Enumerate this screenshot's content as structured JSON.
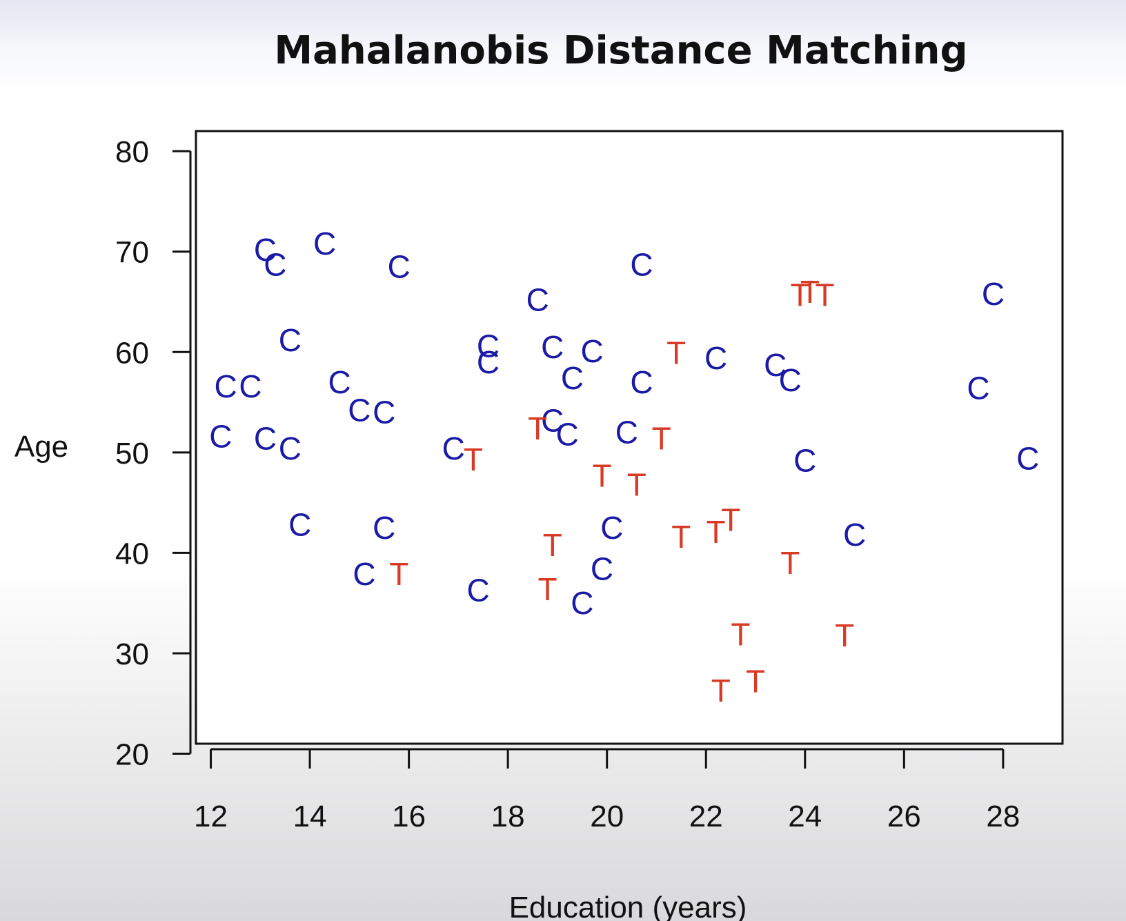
{
  "chart_data": {
    "type": "scatter",
    "title": "Mahalanobis Distance Matching",
    "xlabel": "Education (years)",
    "ylabel": "Age",
    "xlim": [
      11.7,
      29.2
    ],
    "ylim": [
      21,
      82
    ],
    "x_ticks": [
      "12",
      "14",
      "16",
      "18",
      "20",
      "22",
      "24",
      "26",
      "28"
    ],
    "y_ticks": [
      "20",
      "30",
      "40",
      "50",
      "60",
      "70",
      "80"
    ],
    "grid": false,
    "legend": "none",
    "series": [
      {
        "marker": "C",
        "color": "#1a1aa6",
        "points": [
          [
            13.1,
            70.2
          ],
          [
            13.3,
            68.7
          ],
          [
            14.3,
            70.8
          ],
          [
            15.8,
            68.5
          ],
          [
            20.7,
            68.7
          ],
          [
            18.6,
            65.2
          ],
          [
            27.8,
            65.8
          ],
          [
            13.6,
            61.2
          ],
          [
            17.6,
            60.6
          ],
          [
            17.6,
            59.0
          ],
          [
            18.9,
            60.5
          ],
          [
            19.7,
            60.1
          ],
          [
            22.2,
            59.4
          ],
          [
            23.4,
            58.7
          ],
          [
            23.7,
            57.2
          ],
          [
            19.3,
            57.4
          ],
          [
            20.7,
            57.0
          ],
          [
            12.3,
            56.6
          ],
          [
            12.8,
            56.6
          ],
          [
            14.6,
            57.0
          ],
          [
            15.0,
            54.2
          ],
          [
            15.5,
            54.0
          ],
          [
            27.5,
            56.4
          ],
          [
            18.9,
            53.2
          ],
          [
            19.2,
            51.8
          ],
          [
            20.4,
            52.0
          ],
          [
            12.2,
            51.6
          ],
          [
            13.1,
            51.4
          ],
          [
            13.6,
            50.4
          ],
          [
            16.9,
            50.4
          ],
          [
            24.0,
            49.2
          ],
          [
            28.5,
            49.4
          ],
          [
            13.8,
            42.8
          ],
          [
            15.5,
            42.5
          ],
          [
            20.1,
            42.5
          ],
          [
            25.0,
            41.8
          ],
          [
            15.1,
            37.9
          ],
          [
            17.4,
            36.3
          ],
          [
            19.9,
            38.4
          ],
          [
            19.5,
            35.0
          ]
        ]
      },
      {
        "marker": "T",
        "color": "#d83a24",
        "points": [
          [
            23.9,
            65.7
          ],
          [
            24.1,
            66.0
          ],
          [
            24.4,
            65.7
          ],
          [
            21.4,
            59.9
          ],
          [
            18.6,
            52.4
          ],
          [
            17.3,
            49.3
          ],
          [
            21.1,
            51.4
          ],
          [
            19.9,
            47.7
          ],
          [
            20.6,
            46.8
          ],
          [
            21.5,
            41.6
          ],
          [
            22.2,
            42.1
          ],
          [
            22.5,
            43.3
          ],
          [
            18.9,
            40.8
          ],
          [
            23.7,
            39.0
          ],
          [
            15.8,
            37.9
          ],
          [
            18.8,
            36.4
          ],
          [
            22.7,
            31.9
          ],
          [
            24.8,
            31.8
          ],
          [
            22.3,
            26.3
          ],
          [
            23.0,
            27.2
          ]
        ]
      }
    ]
  }
}
